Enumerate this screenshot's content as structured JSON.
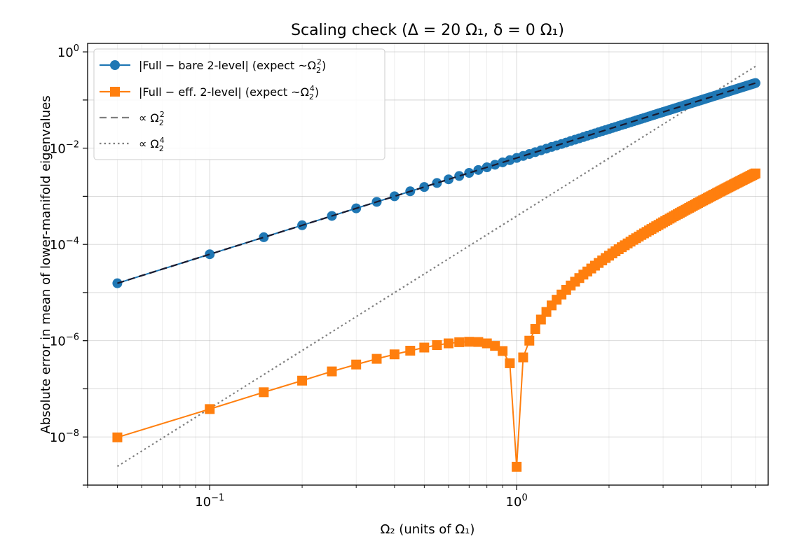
{
  "chart_data": {
    "type": "line",
    "title": "Scaling check (Δ = 20 Ω₁,  δ = 0 Ω₁)",
    "xlabel": "Ω₂  (units of Ω₁)",
    "ylabel": "Absolute error in mean of lower-manifold eigenvalues",
    "xscale": "log",
    "yscale": "log",
    "xlim": [
      0.04,
      6.6
    ],
    "ylim": [
      1e-09,
      1.5
    ],
    "grid": true,
    "legend_position": "top-left",
    "xticks": [
      {
        "value": 0.1,
        "base": "10",
        "exp": "−1"
      },
      {
        "value": 1,
        "base": "10",
        "exp": "0"
      }
    ],
    "yticks": [
      {
        "value": 1e-08,
        "base": "10",
        "exp": "−8"
      },
      {
        "value": 1e-06,
        "base": "10",
        "exp": "−6"
      },
      {
        "value": 0.0001,
        "base": "10",
        "exp": "−4"
      },
      {
        "value": 0.01,
        "base": "10",
        "exp": "−2"
      },
      {
        "value": 1,
        "base": "10",
        "exp": "0"
      }
    ],
    "series": [
      {
        "name": "|Full − bare 2-level| (expect ~Ω₂²)",
        "legend_parts": [
          "|Full − bare 2-level| (expect ",
          "~Ω",
          "2",
          "2",
          ")"
        ],
        "color": "#1f77b4",
        "marker": "circle",
        "linestyle": "solid",
        "x": [
          0.05,
          0.1,
          0.15,
          0.2,
          0.25,
          0.3,
          0.35,
          0.4,
          0.45,
          0.5,
          0.55,
          0.6,
          0.65,
          0.7,
          0.75,
          0.8,
          0.85,
          0.9,
          0.95,
          1.0,
          1.05,
          1.1,
          1.15,
          1.2,
          1.25,
          1.3,
          1.35,
          1.4,
          1.45,
          1.5,
          1.55,
          1.6,
          1.65,
          1.7,
          1.75,
          1.8,
          1.85,
          1.9,
          1.95,
          2.0,
          2.05,
          2.1,
          2.15,
          2.2,
          2.25,
          2.3,
          2.35,
          2.4,
          2.45,
          2.5,
          2.55,
          2.6,
          2.65,
          2.7,
          2.75,
          2.8,
          2.85,
          2.9,
          2.95,
          3.0,
          3.05,
          3.1,
          3.15,
          3.2,
          3.25,
          3.3,
          3.35,
          3.4,
          3.45,
          3.5,
          3.55,
          3.6,
          3.65,
          3.7,
          3.75,
          3.8,
          3.85,
          3.9,
          3.95,
          4.0,
          4.05,
          4.1,
          4.15,
          4.2,
          4.25,
          4.3,
          4.35,
          4.4,
          4.45,
          4.5,
          4.55,
          4.6,
          4.65,
          4.7,
          4.75,
          4.8,
          4.85,
          4.9,
          4.95,
          5.0,
          5.05,
          5.1,
          5.15,
          5.2,
          5.25,
          5.3,
          5.35,
          5.4,
          5.45,
          5.5,
          5.55,
          5.6,
          5.65,
          5.7,
          5.75,
          5.8,
          5.85,
          5.9,
          5.95,
          6.0
        ],
        "y": [
          1.56e-05,
          6.25e-05,
          0.000141,
          0.00025,
          0.000391,
          0.000562,
          0.000766,
          0.001,
          0.00127,
          0.00156,
          0.00189,
          0.00225,
          0.00264,
          0.00306,
          0.00352,
          0.004,
          0.00452,
          0.00506,
          0.00564,
          0.00625,
          0.00689,
          0.00756,
          0.00827,
          0.009,
          0.00977,
          0.0106,
          0.0114,
          0.0122,
          0.0131,
          0.0141,
          0.015,
          0.016,
          0.017,
          0.0181,
          0.0191,
          0.0203,
          0.0214,
          0.0226,
          0.0238,
          0.025,
          0.0263,
          0.0276,
          0.0289,
          0.0303,
          0.0316,
          0.0331,
          0.0345,
          0.036,
          0.0375,
          0.0391,
          0.0406,
          0.0422,
          0.0439,
          0.0456,
          0.0473,
          0.049,
          0.0508,
          0.0526,
          0.0544,
          0.0563,
          0.0581,
          0.0601,
          0.062,
          0.064,
          0.066,
          0.0681,
          0.0702,
          0.0723,
          0.0744,
          0.0766,
          0.0788,
          0.081,
          0.0833,
          0.0856,
          0.0879,
          0.0903,
          0.0926,
          0.0951,
          0.0975,
          0.1,
          0.1025,
          0.1051,
          0.1076,
          0.1102,
          0.1129,
          0.1156,
          0.1183,
          0.121,
          0.1238,
          0.1266,
          0.1294,
          0.1323,
          0.1351,
          0.1381,
          0.141,
          0.144,
          0.147,
          0.15,
          0.1531,
          0.1562,
          0.1594,
          0.1626,
          0.1658,
          0.169,
          0.1723,
          0.1756,
          0.1789,
          0.1823,
          0.1856,
          0.1891,
          0.1925,
          0.196,
          0.1995,
          0.2031,
          0.2066,
          0.2103,
          0.2139,
          0.2176,
          0.2213,
          0.225
        ]
      },
      {
        "name": "|Full − eff. 2-level| (expect ~Ω₂⁴)",
        "legend_parts": [
          "|Full − eff. 2-level| (expect ",
          "~Ω",
          "2",
          "4",
          ")"
        ],
        "color": "#ff7f0e",
        "marker": "square",
        "linestyle": "solid",
        "x": [
          0.05,
          0.1,
          0.15,
          0.2,
          0.25,
          0.3,
          0.35,
          0.4,
          0.45,
          0.5,
          0.55,
          0.6,
          0.65,
          0.7,
          0.75,
          0.8,
          0.85,
          0.9,
          0.95,
          1.0,
          1.05,
          1.1,
          1.15,
          1.2,
          1.25,
          1.3,
          1.35,
          1.4,
          1.45,
          1.5,
          1.55,
          1.6,
          1.65,
          1.7,
          1.75,
          1.8,
          1.85,
          1.9,
          1.95,
          2.0,
          2.05,
          2.1,
          2.15,
          2.2,
          2.25,
          2.3,
          2.35,
          2.4,
          2.45,
          2.5,
          2.55,
          2.6,
          2.65,
          2.7,
          2.75,
          2.8,
          2.85,
          2.9,
          2.95,
          3.0,
          3.05,
          3.1,
          3.15,
          3.2,
          3.25,
          3.3,
          3.35,
          3.4,
          3.45,
          3.5,
          3.55,
          3.6,
          3.65,
          3.7,
          3.75,
          3.8,
          3.85,
          3.9,
          3.95,
          4.0,
          4.05,
          4.1,
          4.15,
          4.2,
          4.25,
          4.3,
          4.35,
          4.4,
          4.45,
          4.5,
          4.55,
          4.6,
          4.65,
          4.7,
          4.75,
          4.8,
          4.85,
          4.9,
          4.95,
          5.0,
          5.05,
          5.1,
          5.15,
          5.2,
          5.25,
          5.3,
          5.35,
          5.4,
          5.45,
          5.5,
          5.55,
          5.6,
          5.65,
          5.7,
          5.75,
          5.8,
          5.85,
          5.9,
          5.95,
          6.0
        ],
        "y": [
          9.8e-09,
          3.8e-08,
          8.5e-08,
          1.48e-07,
          2.3e-07,
          3.2e-07,
          4.2e-07,
          5.2e-07,
          6.2e-07,
          7.2e-07,
          8.1e-07,
          8.8e-07,
          9.3e-07,
          9.5e-07,
          9.4e-07,
          8.8e-07,
          7.8e-07,
          6.1e-07,
          3.4e-07,
          2.4e-09,
          4.5e-07,
          1e-06,
          1.75e-06,
          2.75e-06,
          3.95e-06,
          5.4e-06,
          7.1e-06,
          9.1e-06,
          1.14e-05,
          1.4e-05,
          1.68e-05,
          2e-05,
          2.36e-05,
          2.74e-05,
          3.16e-05,
          3.62e-05,
          4.12e-05,
          4.65e-05,
          5.22e-05,
          5.84e-05,
          6.5e-05,
          7.2e-05,
          7.95e-05,
          8.75e-05,
          9.6e-05,
          0.0001049,
          0.0001143,
          0.0001243,
          0.0001347,
          0.0001457,
          0.0001572,
          0.0001693,
          0.000182,
          0.0001952,
          0.0002091,
          0.0002236,
          0.0002387,
          0.0002544,
          0.0002708,
          0.0002879,
          0.0003056,
          0.000324,
          0.0003432,
          0.000363,
          0.0003836,
          0.0004049,
          0.000427,
          0.0004498,
          0.0004734,
          0.0004978,
          0.000523,
          0.000549,
          0.0005758,
          0.0006035,
          0.000632,
          0.0006614,
          0.0006916,
          0.0007227,
          0.0007547,
          0.0007876,
          0.0008214,
          0.0008562,
          0.0008919,
          0.0009285,
          0.0009661,
          0.0010047,
          0.0010443,
          0.0010849,
          0.0011265,
          0.0011692,
          0.0012129,
          0.0012576,
          0.0013034,
          0.0013503,
          0.0013983,
          0.0014474,
          0.0014976,
          0.0015489,
          0.0016014,
          0.001655,
          0.0017098,
          0.0017657,
          0.0018229,
          0.0018812,
          0.0019408,
          0.0020015,
          0.0020635,
          0.0021268,
          0.0021913,
          0.002257,
          0.0023241,
          0.0023924,
          0.0024621,
          0.002533,
          0.0026053,
          0.0026789,
          0.0027538,
          0.0028301,
          0.0029078,
          0.0029868
        ]
      },
      {
        "name": "∝ Ω₂²",
        "legend_parts": [
          "∝ Ω",
          "2",
          "2"
        ],
        "color": "#7f7f7f",
        "marker": "none",
        "linestyle": "dashed",
        "x": [
          0.05,
          6.0
        ],
        "y": [
          1.56e-05,
          0.225
        ]
      },
      {
        "name": "∝ Ω₂⁴",
        "legend_parts": [
          "∝ Ω",
          "2",
          "4"
        ],
        "color": "#7f7f7f",
        "marker": "none",
        "linestyle": "dotted",
        "x": [
          0.05,
          6.0
        ],
        "y": [
          2.45e-09,
          0.5
        ]
      }
    ],
    "fit_overlay": {
      "color": "#1a1a2e",
      "linestyle": "dashed",
      "x": [
        0.05,
        6.0
      ],
      "y": [
        1.56e-05,
        0.225
      ]
    }
  }
}
